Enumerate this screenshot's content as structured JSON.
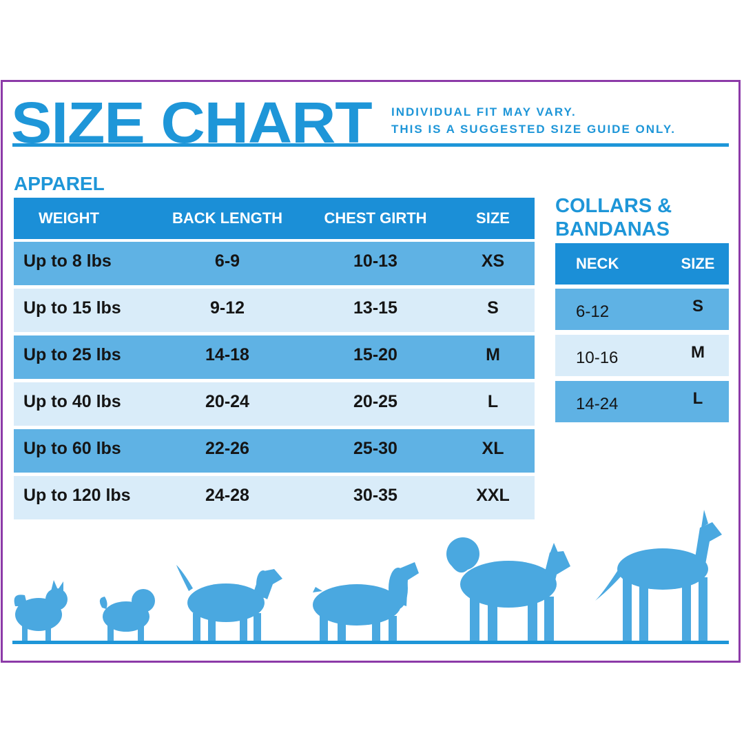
{
  "header": {
    "title": "SIZE CHART",
    "disclaimer_line1": "INDIVIDUAL FIT MAY VARY.",
    "disclaimer_line2": "THIS IS A SUGGESTED SIZE GUIDE ONLY."
  },
  "apparel": {
    "label": "APPAREL",
    "columns": [
      "WEIGHT",
      "BACK LENGTH",
      "CHEST GIRTH",
      "SIZE"
    ],
    "rows": [
      [
        "Up to 8 lbs",
        "6-9",
        "10-13",
        "XS"
      ],
      [
        "Up to 15 lbs",
        "9-12",
        "13-15",
        "S"
      ],
      [
        "Up to 25 lbs",
        "14-18",
        "15-20",
        "M"
      ],
      [
        "Up to 40 lbs",
        "20-24",
        "20-25",
        "L"
      ],
      [
        "Up to 60 lbs",
        "22-26",
        "25-30",
        "XL"
      ],
      [
        "Up to 120 lbs",
        "24-28",
        "30-35",
        "XXL"
      ]
    ]
  },
  "collars": {
    "label_line1": "COLLARS &",
    "label_line2": "BANDANAS",
    "columns": [
      "NECK",
      "SIZE"
    ],
    "rows": [
      [
        "6-12",
        "S"
      ],
      [
        "10-16",
        "M"
      ],
      [
        "14-24",
        "L"
      ]
    ]
  },
  "colors": {
    "brand_blue": "#1e96d8",
    "header_blue": "#1b8fd7",
    "row_mid_blue": "#5fb2e4",
    "row_light_blue": "#d9ecf9",
    "frame_purple": "#8c3aa8"
  },
  "illustration": {
    "icons": [
      "pomeranian-silhouette-icon",
      "pug-silhouette-icon",
      "beagle-silhouette-icon",
      "spaniel-silhouette-icon",
      "husky-silhouette-icon",
      "great-dane-silhouette-icon"
    ]
  }
}
